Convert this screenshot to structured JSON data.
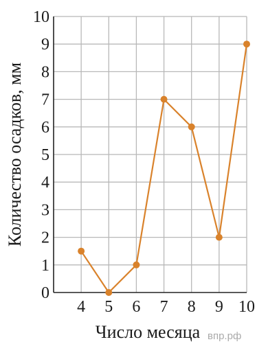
{
  "chart_data": {
    "type": "line",
    "title": "",
    "xlabel": "Число месяца",
    "ylabel": "Количество осадков, мм",
    "x": [
      4,
      5,
      6,
      7,
      8,
      9,
      10
    ],
    "y": [
      1.5,
      0,
      1,
      7,
      6,
      2,
      9
    ],
    "x_ticks": [
      "4",
      "5",
      "6",
      "7",
      "8",
      "9",
      "10"
    ],
    "y_ticks": [
      "0",
      "1",
      "2",
      "3",
      "4",
      "5",
      "6",
      "7",
      "8",
      "9",
      "10"
    ],
    "xlim": [
      3,
      10
    ],
    "ylim": [
      0,
      10
    ],
    "grid": true,
    "line_color": "#d9822b",
    "grid_color": "#b8b8b8"
  },
  "watermark": "впр.рф"
}
